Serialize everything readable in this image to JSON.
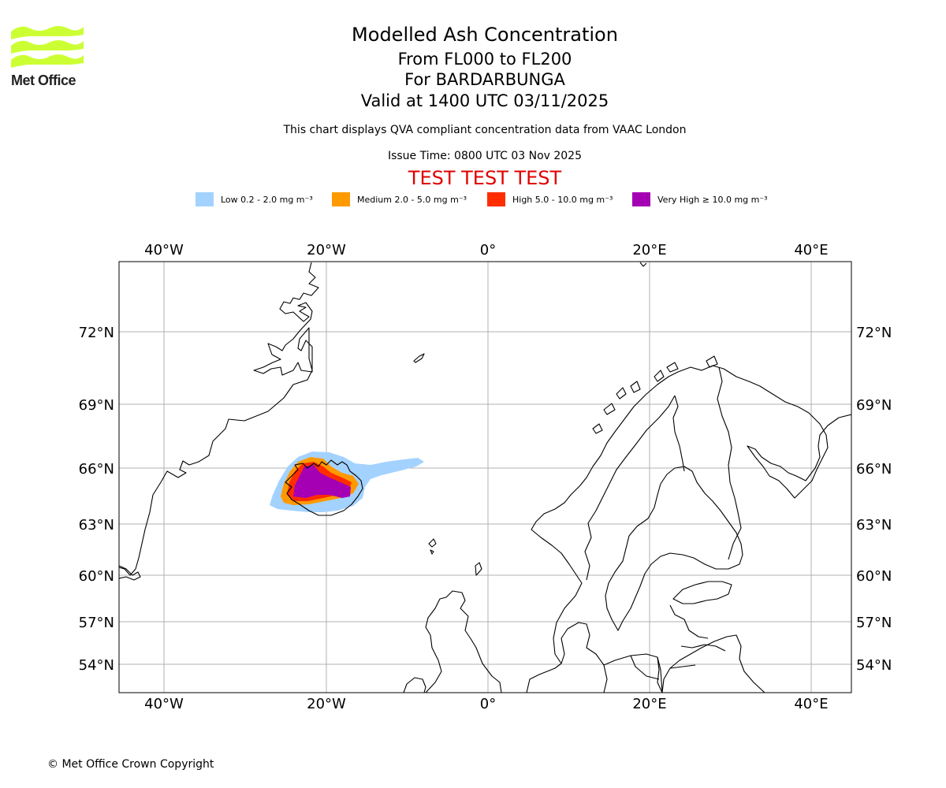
{
  "logo": {
    "text": "Met Office",
    "colors": {
      "waves": "#ccff33",
      "text": "#222222"
    }
  },
  "title": {
    "main": "Modelled Ash Concentration",
    "levels": "From FL000 to FL200",
    "volcano": "For BARDARBUNGA",
    "valid": "Valid at 1400 UTC 03/11/2025"
  },
  "subtitle": "This chart displays QVA compliant concentration data from VAAC London",
  "issue_time": "Issue Time: 0800 UTC 03 Nov 2025",
  "test_banner": "TEST TEST TEST",
  "legend": [
    {
      "label": "Low 0.2 - 2.0 mg m⁻³",
      "color": "#a3d2ff"
    },
    {
      "label": "Medium 2.0 - 5.0 mg m⁻³",
      "color": "#ff9900"
    },
    {
      "label": "High 5.0 - 10.0 mg m⁻³",
      "color": "#ff2d00"
    },
    {
      "label": "Very High  ≥  10.0 mg m⁻³",
      "color": "#a500b4"
    }
  ],
  "map": {
    "lon_labels": [
      "40°W",
      "20°W",
      "0°",
      "20°E",
      "40°E"
    ],
    "lat_labels": [
      "72°N",
      "69°N",
      "66°N",
      "63°N",
      "60°N",
      "57°N",
      "54°N"
    ],
    "gridline_color": "#b0b0b0"
  },
  "copyright": "© Met Office Crown Copyright"
}
